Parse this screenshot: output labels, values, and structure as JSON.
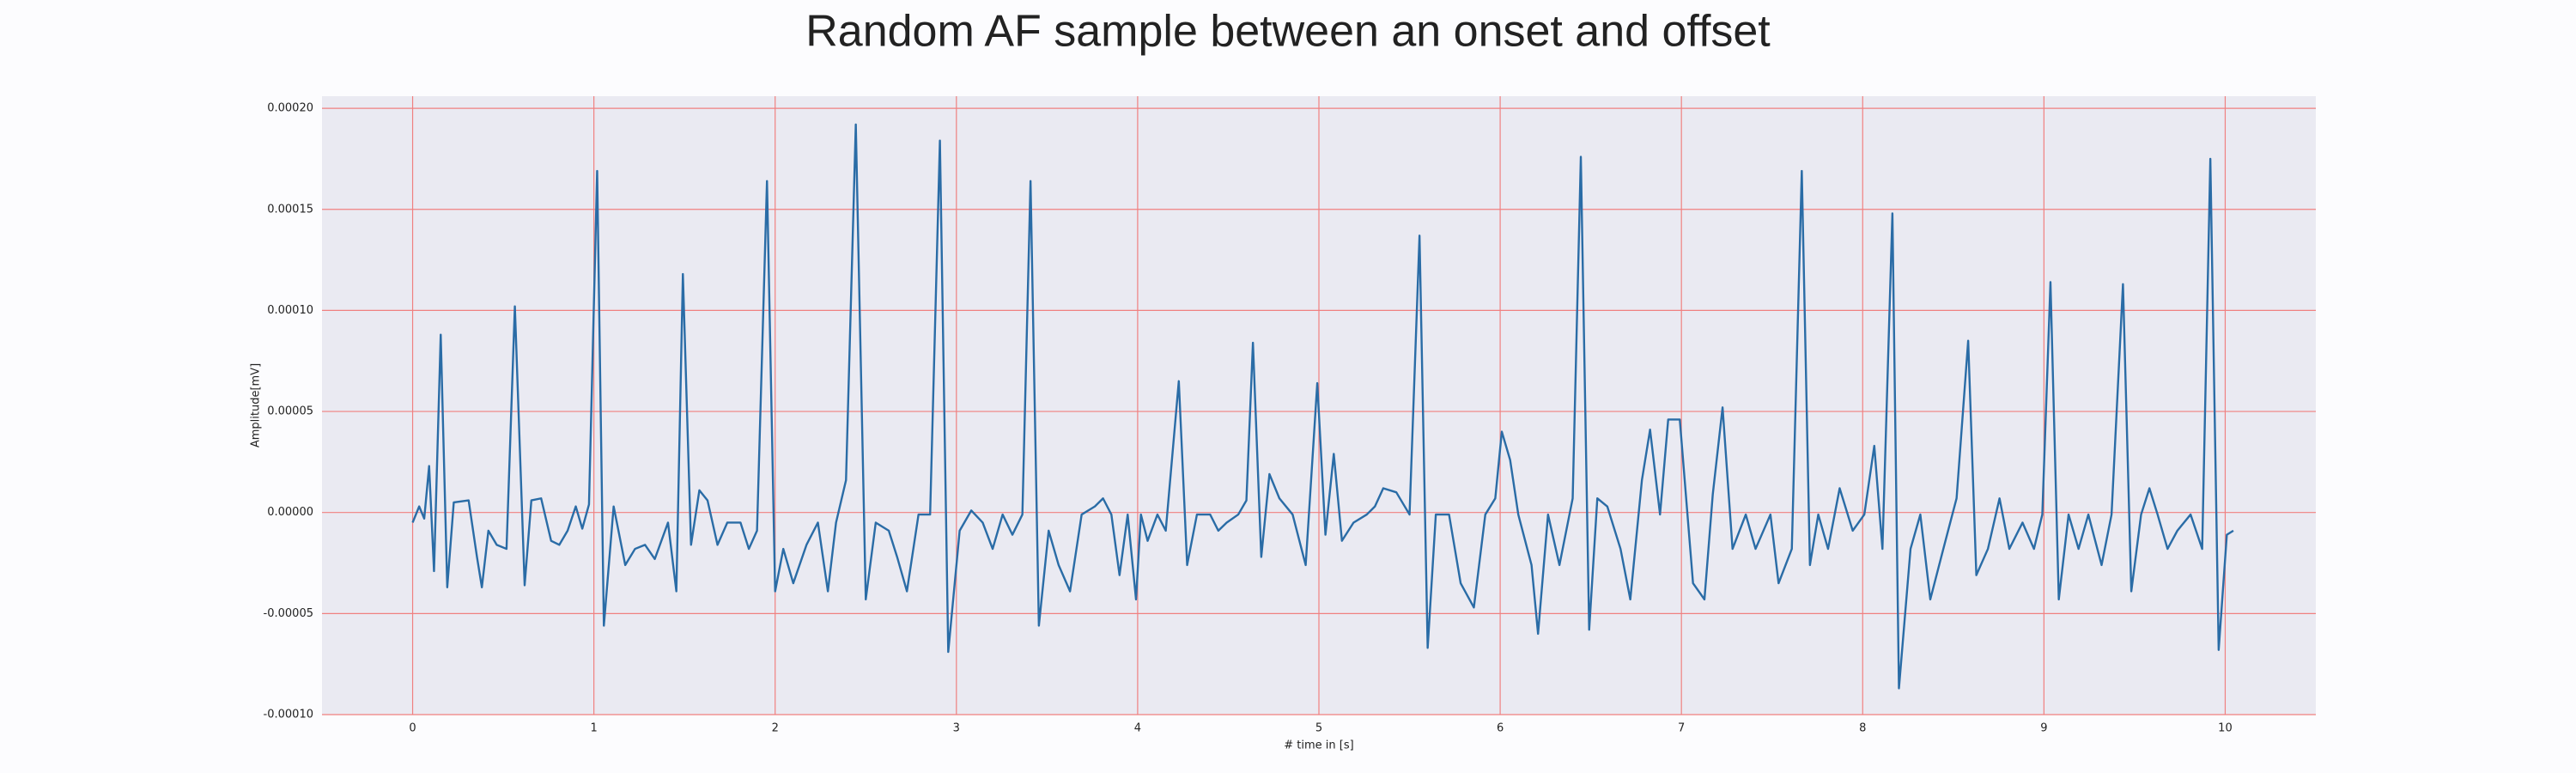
{
  "chart_data": {
    "type": "line",
    "title": "Random AF sample between an onset and offset",
    "xlabel": "# time in [s]",
    "ylabel": "Amplitude[mV]",
    "xlim": [
      -0.5,
      10.5
    ],
    "xticks": [
      0,
      1,
      2,
      3,
      4,
      5,
      6,
      7,
      8,
      9,
      10
    ],
    "ylim": [
      -0.0001,
      0.000206
    ],
    "yticks": [
      {
        "value": -0.0001,
        "label": "-0.00010"
      },
      {
        "value": -5e-05,
        "label": "-0.00005"
      },
      {
        "value": 0,
        "label": "0.00000"
      },
      {
        "value": 5e-05,
        "label": "0.00005"
      },
      {
        "value": 0.0001,
        "label": "0.00010"
      },
      {
        "value": 0.00015,
        "label": "0.00015"
      },
      {
        "value": 0.0002,
        "label": "0.00020"
      }
    ],
    "grid": true,
    "series": [
      {
        "color": "#2a6ca6",
        "x": [
          0,
          0.036,
          0.064,
          0.091,
          0.118,
          0.155,
          0.191,
          0.227,
          0.309,
          0.355,
          0.382,
          0.418,
          0.464,
          0.518,
          0.564,
          0.618,
          0.655,
          0.709,
          0.764,
          0.809,
          0.855,
          0.9,
          0.936,
          0.973,
          1.018,
          1.055,
          1.109,
          1.173,
          1.227,
          1.282,
          1.336,
          1.409,
          1.455,
          1.491,
          1.536,
          1.582,
          1.627,
          1.682,
          1.736,
          1.809,
          1.855,
          1.9,
          1.955,
          2.0,
          2.045,
          2.1,
          2.173,
          2.236,
          2.291,
          2.336,
          2.391,
          2.445,
          2.5,
          2.555,
          2.627,
          2.673,
          2.727,
          2.791,
          2.855,
          2.909,
          2.955,
          3.018,
          3.082,
          3.145,
          3.2,
          3.255,
          3.309,
          3.364,
          3.409,
          3.455,
          3.509,
          3.564,
          3.627,
          3.691,
          3.764,
          3.809,
          3.855,
          3.9,
          3.945,
          3.991,
          4.018,
          4.055,
          4.109,
          4.155,
          4.227,
          4.273,
          4.327,
          4.4,
          4.445,
          4.491,
          4.555,
          4.6,
          4.636,
          4.682,
          4.727,
          4.782,
          4.855,
          4.927,
          4.991,
          5.036,
          5.082,
          5.127,
          5.191,
          5.264,
          5.309,
          5.355,
          5.427,
          5.5,
          5.555,
          5.6,
          5.645,
          5.718,
          5.782,
          5.855,
          5.918,
          5.973,
          6.009,
          6.055,
          6.1,
          6.173,
          6.209,
          6.264,
          6.327,
          6.4,
          6.445,
          6.491,
          6.536,
          6.591,
          6.664,
          6.718,
          6.782,
          6.827,
          6.882,
          6.927,
          6.991,
          7.064,
          7.127,
          7.173,
          7.227,
          7.282,
          7.355,
          7.409,
          7.491,
          7.536,
          7.609,
          7.664,
          7.709,
          7.755,
          7.809,
          7.873,
          7.945,
          8.009,
          8.064,
          8.109,
          8.164,
          8.2,
          8.264,
          8.318,
          8.373,
          8.445,
          8.518,
          8.582,
          8.627,
          8.691,
          8.755,
          8.809,
          8.882,
          8.945,
          8.991,
          9.036,
          9.082,
          9.136,
          9.191,
          9.245,
          9.318,
          9.373,
          9.436,
          9.482,
          9.536,
          9.582,
          9.627,
          9.682,
          9.736,
          9.809,
          9.873,
          9.918,
          9.964,
          10.009,
          10.045
        ],
        "values": [
          -5e-06,
          3e-06,
          -3e-06,
          2.3e-05,
          -2.9e-05,
          8.8e-05,
          -3.7e-05,
          5e-06,
          6e-06,
          -2.2e-05,
          -3.7e-05,
          -9e-06,
          -1.6e-05,
          -1.8e-05,
          0.000102,
          -3.6e-05,
          6e-06,
          7e-06,
          -1.4e-05,
          -1.6e-05,
          -9e-06,
          3e-06,
          -8e-06,
          4e-06,
          0.000169,
          -5.6e-05,
          3e-06,
          -2.6e-05,
          -1.8e-05,
          -1.6e-05,
          -2.3e-05,
          -5e-06,
          -3.9e-05,
          0.000118,
          -1.6e-05,
          1.1e-05,
          6e-06,
          -1.6e-05,
          -5e-06,
          -5e-06,
          -1.8e-05,
          -9e-06,
          0.000164,
          -3.9e-05,
          -1.8e-05,
          -3.5e-05,
          -1.6e-05,
          -5e-06,
          -3.9e-05,
          -5e-06,
          1.6e-05,
          0.000192,
          -4.3e-05,
          -5e-06,
          -9e-06,
          -2.2e-05,
          -3.9e-05,
          -1e-06,
          -1e-06,
          0.000184,
          -6.9e-05,
          -9e-06,
          1e-06,
          -5e-06,
          -1.8e-05,
          -1e-06,
          -1.1e-05,
          -1e-06,
          0.000164,
          -5.6e-05,
          -9e-06,
          -2.6e-05,
          -3.9e-05,
          -1e-06,
          3e-06,
          7e-06,
          -1e-06,
          -3.1e-05,
          -1e-06,
          -4.3e-05,
          -1e-06,
          -1.4e-05,
          -1e-06,
          -9e-06,
          6.5e-05,
          -2.6e-05,
          -1e-06,
          -1e-06,
          -9e-06,
          -5e-06,
          -1e-06,
          6e-06,
          8.4e-05,
          -2.2e-05,
          1.9e-05,
          7e-06,
          -1e-06,
          -2.6e-05,
          6.4e-05,
          -1.1e-05,
          2.9e-05,
          -1.4e-05,
          -5e-06,
          -1e-06,
          3e-06,
          1.2e-05,
          1e-05,
          -1e-06,
          0.000137,
          -6.7e-05,
          -1e-06,
          -1e-06,
          -3.5e-05,
          -4.7e-05,
          -1e-06,
          7e-06,
          4e-05,
          2.6e-05,
          -1e-06,
          -2.6e-05,
          -6e-05,
          -1e-06,
          -2.6e-05,
          7e-06,
          0.000176,
          -5.8e-05,
          7e-06,
          3e-06,
          -1.8e-05,
          -4.3e-05,
          1.6e-05,
          4.1e-05,
          -1e-06,
          4.6e-05,
          4.6e-05,
          -3.5e-05,
          -4.3e-05,
          9e-06,
          5.2e-05,
          -1.8e-05,
          -1e-06,
          -1.8e-05,
          -1e-06,
          -3.5e-05,
          -1.8e-05,
          0.000169,
          -2.6e-05,
          -1e-06,
          -1.8e-05,
          1.2e-05,
          -9e-06,
          -1e-06,
          3.3e-05,
          -1.8e-05,
          0.000148,
          -8.7e-05,
          -1.8e-05,
          -1e-06,
          -4.3e-05,
          -1.8e-05,
          7e-06,
          8.5e-05,
          -3.1e-05,
          -1.8e-05,
          7e-06,
          -1.8e-05,
          -5e-06,
          -1.8e-05,
          -1e-06,
          0.000114,
          -4.3e-05,
          -1e-06,
          -1.8e-05,
          -1e-06,
          -2.6e-05,
          -1e-06,
          0.000113,
          -3.9e-05,
          -1e-06,
          1.2e-05,
          -1e-06,
          -1.8e-05,
          -9e-06,
          -1e-06,
          -1.8e-05,
          0.000175,
          -6.8e-05,
          -1.1e-05,
          -9e-06
        ]
      }
    ]
  }
}
